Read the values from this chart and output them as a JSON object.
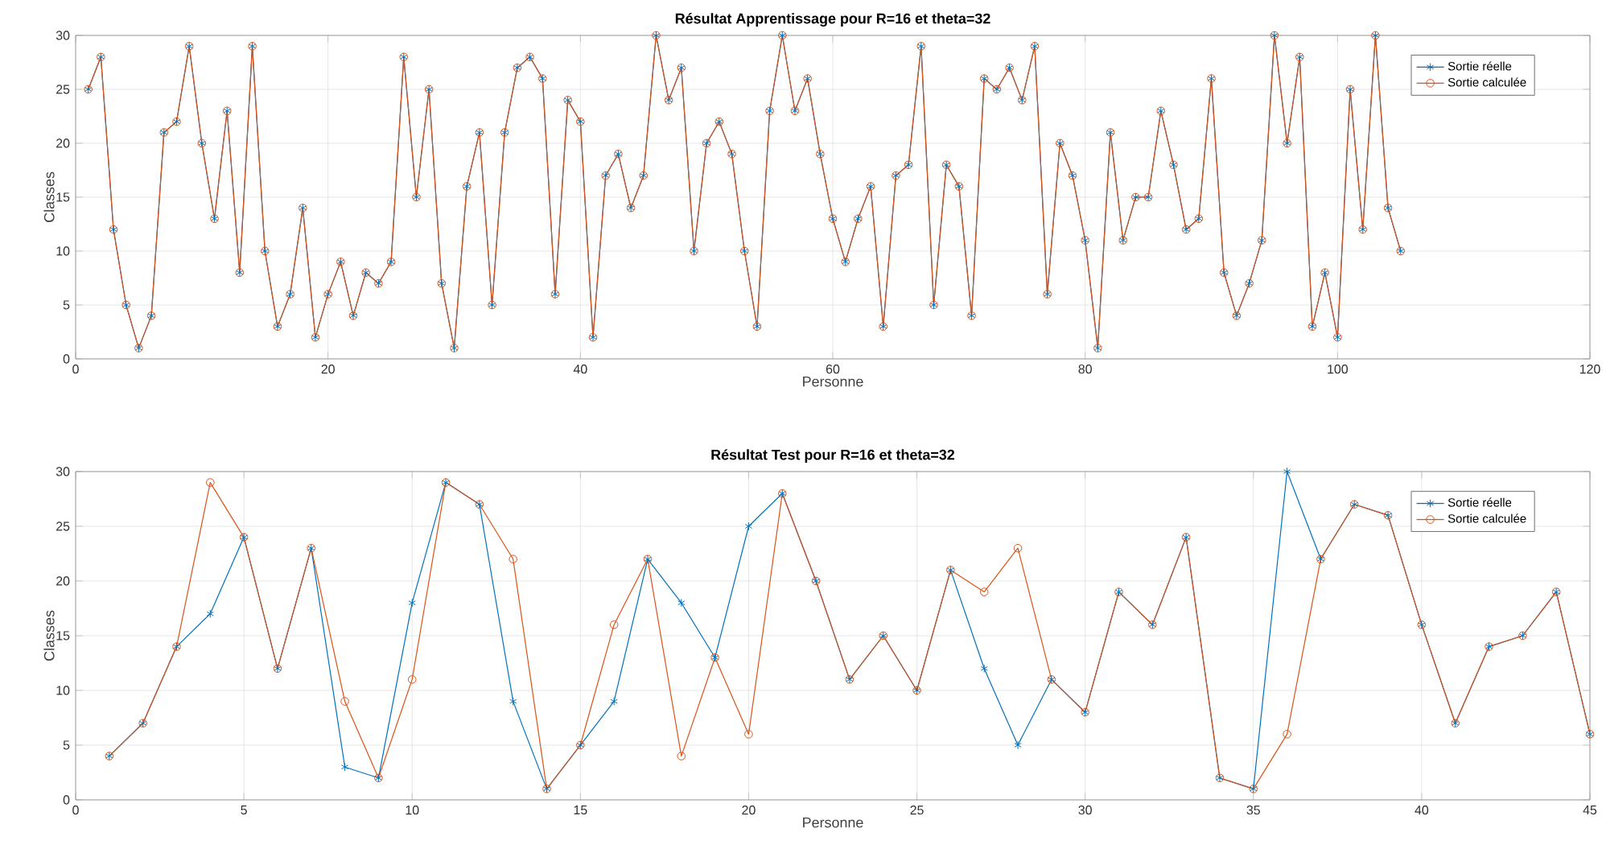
{
  "chart_data": [
    {
      "type": "line",
      "title": "Résultat Apprentissage pour R=16 et theta=32",
      "xlabel": "Personne",
      "ylabel": "Classes",
      "xlim": [
        0,
        120
      ],
      "ylim": [
        0,
        30
      ],
      "xticks": [
        0,
        20,
        40,
        60,
        80,
        100,
        120
      ],
      "yticks": [
        0,
        5,
        10,
        15,
        20,
        25,
        30
      ],
      "grid": true,
      "legend": "top right",
      "series": [
        {
          "name": "Sortie réelle",
          "color": "#0072bd",
          "marker": "cross",
          "x": [
            1,
            2,
            3,
            4,
            5,
            6,
            7,
            8,
            9,
            10,
            11,
            12,
            13,
            14,
            15,
            16,
            17,
            18,
            19,
            20,
            21,
            22,
            23,
            24,
            25,
            26,
            27,
            28,
            29,
            30,
            31,
            32,
            33,
            34,
            35,
            36,
            37,
            38,
            39,
            40,
            41,
            42,
            43,
            44,
            45,
            46,
            47,
            48,
            49,
            50,
            51,
            52,
            53,
            54,
            55,
            56,
            57,
            58,
            59,
            60,
            61,
            62,
            63,
            64,
            65,
            66,
            67,
            68,
            69,
            70,
            71,
            72,
            73,
            74,
            75,
            76,
            77,
            78,
            79,
            80,
            81,
            82,
            83,
            84,
            85,
            86,
            87,
            88,
            89,
            90,
            91,
            92,
            93,
            94,
            95,
            96,
            97,
            98,
            99,
            100,
            101,
            102,
            103,
            104,
            105
          ],
          "values": [
            25,
            28,
            12,
            5,
            1,
            4,
            21,
            22,
            29,
            20,
            13,
            23,
            8,
            29,
            10,
            3,
            6,
            14,
            2,
            6,
            9,
            4,
            8,
            7,
            9,
            28,
            15,
            25,
            7,
            1,
            16,
            21,
            5,
            21,
            27,
            28,
            26,
            6,
            24,
            22,
            2,
            17,
            19,
            14,
            17,
            30,
            24,
            27,
            10,
            20,
            22,
            19,
            10,
            3,
            23,
            30,
            23,
            26,
            19,
            13,
            9,
            13,
            16,
            3,
            17,
            18,
            29,
            5,
            18,
            16,
            4,
            26,
            25,
            27,
            24,
            29,
            6,
            20,
            17,
            11,
            1,
            21,
            11,
            15,
            15,
            23,
            18,
            12,
            13,
            26,
            8,
            4,
            7,
            11,
            30,
            20,
            28,
            3,
            8,
            2,
            25,
            12,
            30,
            14,
            10
          ]
        },
        {
          "name": "Sortie calculée",
          "color": "#d95319",
          "marker": "circle",
          "x": [
            1,
            2,
            3,
            4,
            5,
            6,
            7,
            8,
            9,
            10,
            11,
            12,
            13,
            14,
            15,
            16,
            17,
            18,
            19,
            20,
            21,
            22,
            23,
            24,
            25,
            26,
            27,
            28,
            29,
            30,
            31,
            32,
            33,
            34,
            35,
            36,
            37,
            38,
            39,
            40,
            41,
            42,
            43,
            44,
            45,
            46,
            47,
            48,
            49,
            50,
            51,
            52,
            53,
            54,
            55,
            56,
            57,
            58,
            59,
            60,
            61,
            62,
            63,
            64,
            65,
            66,
            67,
            68,
            69,
            70,
            71,
            72,
            73,
            74,
            75,
            76,
            77,
            78,
            79,
            80,
            81,
            82,
            83,
            84,
            85,
            86,
            87,
            88,
            89,
            90,
            91,
            92,
            93,
            94,
            95,
            96,
            97,
            98,
            99,
            100,
            101,
            102,
            103,
            104,
            105
          ],
          "values": [
            25,
            28,
            12,
            5,
            1,
            4,
            21,
            22,
            29,
            20,
            13,
            23,
            8,
            29,
            10,
            3,
            6,
            14,
            2,
            6,
            9,
            4,
            8,
            7,
            9,
            28,
            15,
            25,
            7,
            1,
            16,
            21,
            5,
            21,
            27,
            28,
            26,
            6,
            24,
            22,
            2,
            17,
            19,
            14,
            17,
            30,
            24,
            27,
            10,
            20,
            22,
            19,
            10,
            3,
            23,
            30,
            23,
            26,
            19,
            13,
            9,
            13,
            16,
            3,
            17,
            18,
            29,
            5,
            18,
            16,
            4,
            26,
            25,
            27,
            24,
            29,
            6,
            20,
            17,
            11,
            1,
            21,
            11,
            15,
            15,
            23,
            18,
            12,
            13,
            26,
            8,
            4,
            7,
            11,
            30,
            20,
            28,
            3,
            8,
            2,
            25,
            12,
            30,
            14,
            10
          ]
        }
      ]
    },
    {
      "type": "line",
      "title": "Résultat Test pour R=16 et theta=32",
      "xlabel": "Personne",
      "ylabel": "Classes",
      "xlim": [
        0,
        45
      ],
      "ylim": [
        0,
        30
      ],
      "xticks": [
        0,
        5,
        10,
        15,
        20,
        25,
        30,
        35,
        40,
        45
      ],
      "yticks": [
        0,
        5,
        10,
        15,
        20,
        25,
        30
      ],
      "grid": true,
      "legend": "top right",
      "series": [
        {
          "name": "Sortie réelle",
          "color": "#0072bd",
          "marker": "cross",
          "x": [
            1,
            2,
            3,
            4,
            5,
            6,
            7,
            8,
            9,
            10,
            11,
            12,
            13,
            14,
            15,
            16,
            17,
            18,
            19,
            20,
            21,
            22,
            23,
            24,
            25,
            26,
            27,
            28,
            29,
            30,
            31,
            32,
            33,
            34,
            35,
            36,
            37,
            38,
            39,
            40,
            41,
            42,
            43,
            44,
            45
          ],
          "values": [
            4,
            7,
            14,
            17,
            24,
            12,
            23,
            3,
            2,
            18,
            29,
            27,
            9,
            1,
            5,
            9,
            22,
            18,
            13,
            25,
            28,
            20,
            11,
            15,
            10,
            21,
            12,
            5,
            11,
            8,
            19,
            16,
            24,
            2,
            1,
            30,
            22,
            27,
            26,
            16,
            7,
            14,
            15,
            19,
            6
          ]
        },
        {
          "name": "Sortie calculée",
          "color": "#d95319",
          "marker": "circle",
          "x": [
            1,
            2,
            3,
            4,
            5,
            6,
            7,
            8,
            9,
            10,
            11,
            12,
            13,
            14,
            15,
            16,
            17,
            18,
            19,
            20,
            21,
            22,
            23,
            24,
            25,
            26,
            27,
            28,
            29,
            30,
            31,
            32,
            33,
            34,
            35,
            36,
            37,
            38,
            39,
            40,
            41,
            42,
            43,
            44,
            45
          ],
          "values": [
            4,
            7,
            14,
            29,
            24,
            12,
            23,
            9,
            2,
            11,
            29,
            27,
            22,
            1,
            5,
            16,
            22,
            4,
            13,
            6,
            28,
            20,
            11,
            15,
            10,
            21,
            19,
            23,
            11,
            8,
            19,
            16,
            24,
            2,
            1,
            6,
            22,
            27,
            26,
            16,
            7,
            14,
            15,
            19,
            6
          ]
        }
      ]
    }
  ]
}
